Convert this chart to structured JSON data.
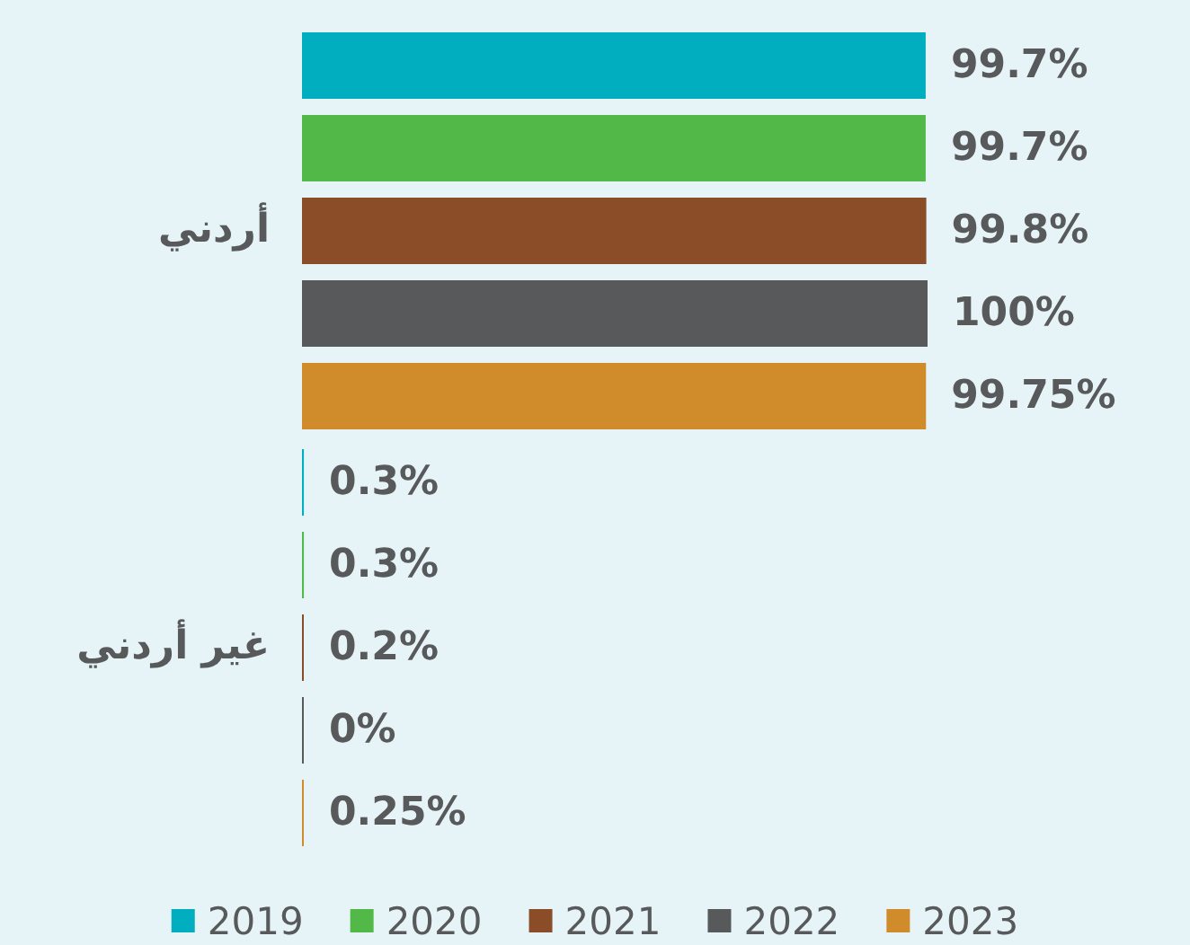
{
  "chart_data": {
    "type": "bar",
    "orientation": "horizontal",
    "legend": "bottom",
    "categories": [
      "أردني",
      "غير أردني"
    ],
    "series": [
      {
        "name": "2019",
        "color": "#00aebf",
        "values": [
          99.7,
          0.3
        ],
        "value_labels": [
          "99.7%",
          "0.3%"
        ]
      },
      {
        "name": "2020",
        "color": "#52b848",
        "values": [
          99.7,
          0.3
        ],
        "value_labels": [
          "99.7%",
          "0.3%"
        ]
      },
      {
        "name": "2021",
        "color": "#8a4d28",
        "values": [
          99.8,
          0.2
        ],
        "value_labels": [
          "99.8%",
          "0.2%"
        ]
      },
      {
        "name": "2022",
        "color": "#58595b",
        "values": [
          100,
          0
        ],
        "value_labels": [
          "100%",
          "0%"
        ]
      },
      {
        "name": "2023",
        "color": "#d08b2b",
        "values": [
          99.75,
          0.25
        ],
        "value_labels": [
          "99.75%",
          "0.25%"
        ]
      }
    ]
  }
}
